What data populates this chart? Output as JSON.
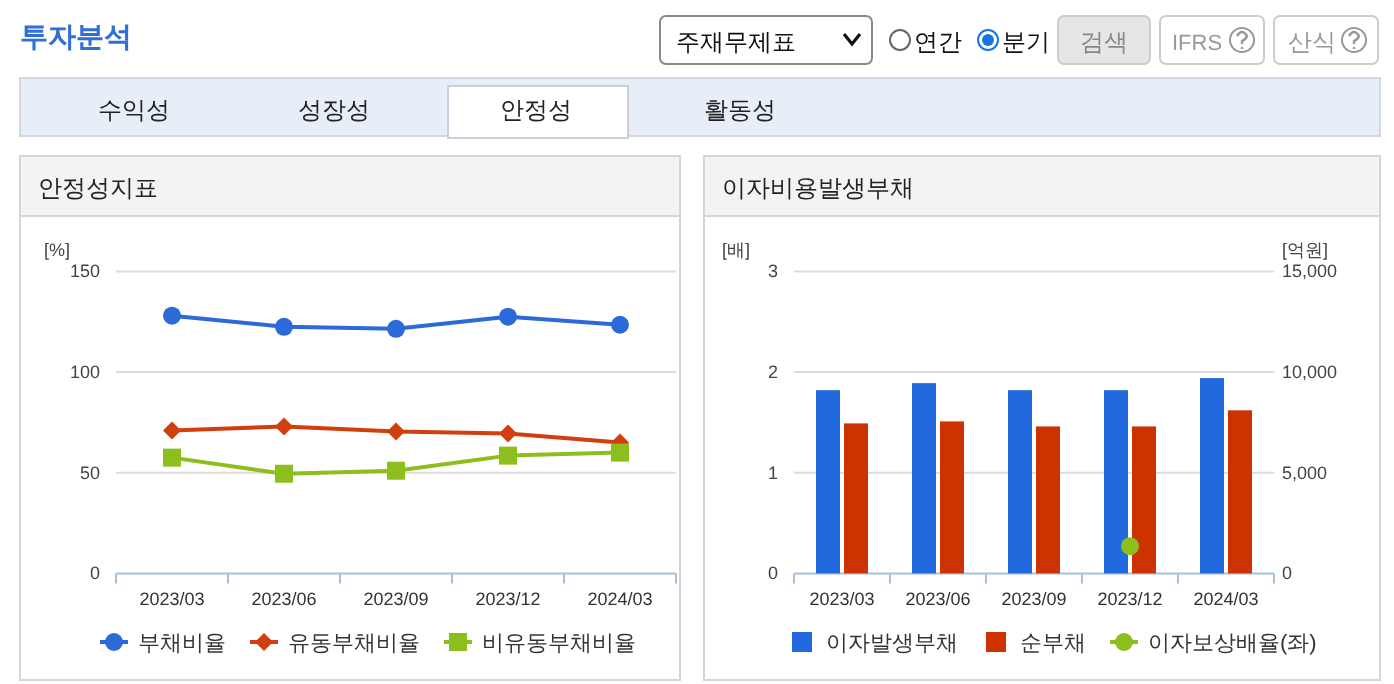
{
  "chart_data": [
    {
      "type": "other",
      "title": "투자분석",
      "annotations": [
        "주재무제표",
        "연간",
        "분기",
        "검색",
        "IFRS",
        "산식",
        "수익성",
        "성장성",
        "안정성",
        "활동성"
      ]
    },
    {
      "type": "line",
      "title": "안정성지표",
      "ylabel": "[%]",
      "categories": [
        "2023/03",
        "2023/06",
        "2023/09",
        "2023/12",
        "2024/03"
      ],
      "ylim": [
        0,
        150
      ],
      "yticks": [
        0,
        50,
        100,
        150
      ],
      "grid": "y",
      "legend": "bottom",
      "series": [
        {
          "name": "부채비율",
          "color": "#2b6ad8",
          "marker": "circle",
          "values": [
            128,
            122.5,
            121.5,
            127.5,
            123.5
          ]
        },
        {
          "name": "유동부채비율",
          "color": "#d13f0e",
          "marker": "diamond",
          "values": [
            71,
            73,
            70.5,
            69.5,
            65
          ]
        },
        {
          "name": "비유동부채비율",
          "color": "#8cbf1c",
          "marker": "square",
          "values": [
            57.5,
            49.5,
            51,
            58.5,
            60
          ]
        }
      ]
    },
    {
      "type": "bar",
      "title": "이자비용발생부채",
      "ylabel": "[배]",
      "y2label": "[억원]",
      "categories": [
        "2023/03",
        "2023/06",
        "2023/09",
        "2023/12",
        "2024/03"
      ],
      "ylim": [
        0,
        3
      ],
      "yticks": [
        0,
        1,
        2,
        3
      ],
      "y2lim": [
        0,
        15000
      ],
      "y2ticks": [
        0,
        {
          "value": 5000,
          "label": "5,000"
        },
        {
          "value": 10000,
          "label": "10,000"
        },
        {
          "value": 15000,
          "label": "15,000"
        }
      ],
      "grid": "y",
      "legend": "bottom",
      "series": [
        {
          "name": "이자발생부채",
          "color": "#2269dd",
          "axis": "y2",
          "values": [
            9100,
            9450,
            9100,
            9100,
            9700
          ]
        },
        {
          "name": "순부채",
          "color": "#cc3300",
          "axis": "y2",
          "values": [
            7450,
            7550,
            7300,
            7300,
            8100
          ]
        },
        {
          "name": "이자보상배율(좌)",
          "type": "scatter",
          "color": "#8cbf1c",
          "marker": "circle",
          "axis": "y",
          "values": [
            null,
            null,
            null,
            0.27,
            null
          ]
        }
      ]
    }
  ]
}
